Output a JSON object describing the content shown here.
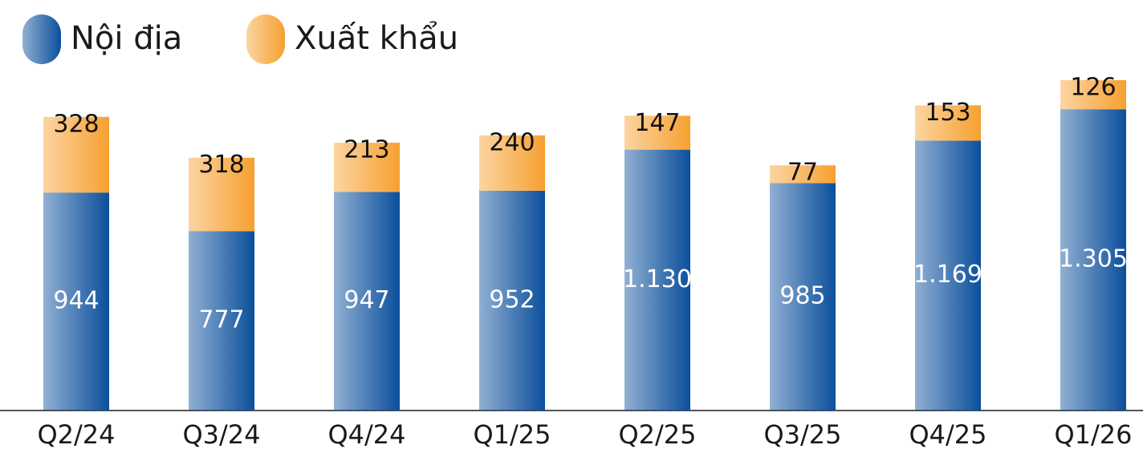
{
  "chart_data": {
    "type": "stacked_bar",
    "categories": [
      "Q2/24",
      "Q3/24",
      "Q4/24",
      "Q1/25",
      "Q2/25",
      "Q3/25",
      "Q4/25",
      "Q1/26"
    ],
    "series": [
      {
        "name": "Nội địa",
        "color": "#0b4f9c",
        "values": [
          944,
          777,
          947,
          952,
          1130,
          985,
          1169,
          1305
        ],
        "value_labels": [
          "944",
          "777",
          "947",
          "952",
          "1.130",
          "985",
          "1.169",
          "1.305"
        ]
      },
      {
        "name": "Xuất khẩu",
        "color": "#f7a030",
        "values": [
          328,
          318,
          213,
          240,
          147,
          77,
          153,
          126
        ]
      }
    ],
    "legend": "top-left"
  }
}
